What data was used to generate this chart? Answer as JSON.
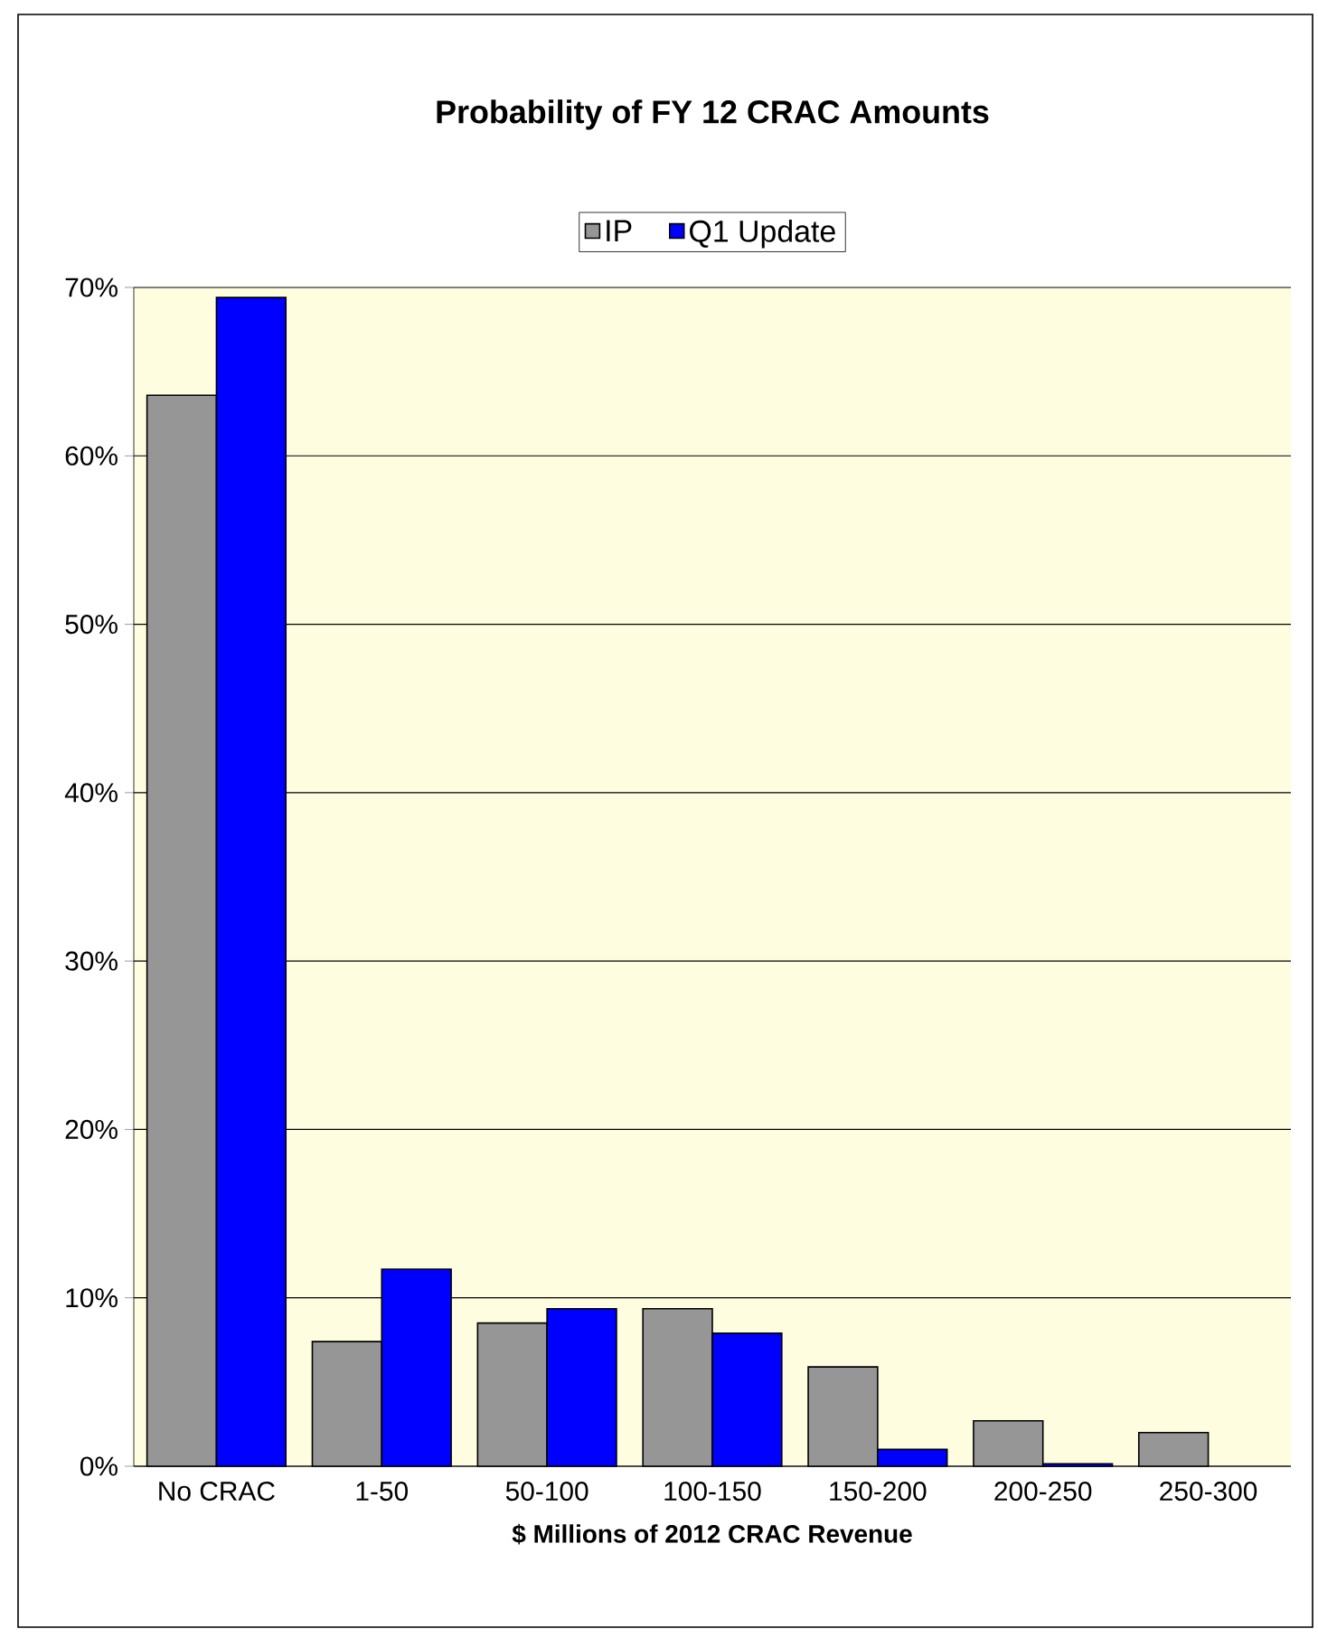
{
  "chart_data": {
    "type": "bar",
    "title": "Probability of FY 12 CRAC Amounts",
    "xlabel": "$ Millions of 2012 CRAC Revenue",
    "categories": [
      "No CRAC",
      "1-50",
      "50-100",
      "100-150",
      "150-200",
      "200-250",
      "250-300"
    ],
    "series": [
      {
        "name": "IP",
        "color": "#969696",
        "values": [
          63.6,
          7.4,
          8.5,
          9.35,
          5.9,
          2.7,
          2.0
        ]
      },
      {
        "name": "Q1 Update",
        "color": "#0000ff",
        "values": [
          69.4,
          11.7,
          9.35,
          7.9,
          1.0,
          0.15,
          null
        ]
      }
    ],
    "ylim": [
      0,
      70
    ],
    "yticks": [
      {
        "value": 0,
        "label": "0%"
      },
      {
        "value": 10,
        "label": "10%"
      },
      {
        "value": 20,
        "label": "20%"
      },
      {
        "value": 30,
        "label": "30%"
      },
      {
        "value": 40,
        "label": "40%"
      },
      {
        "value": 50,
        "label": "50%"
      },
      {
        "value": 60,
        "label": "60%"
      },
      {
        "value": 70,
        "label": "70%"
      }
    ],
    "grid": "y",
    "legend": "top"
  }
}
